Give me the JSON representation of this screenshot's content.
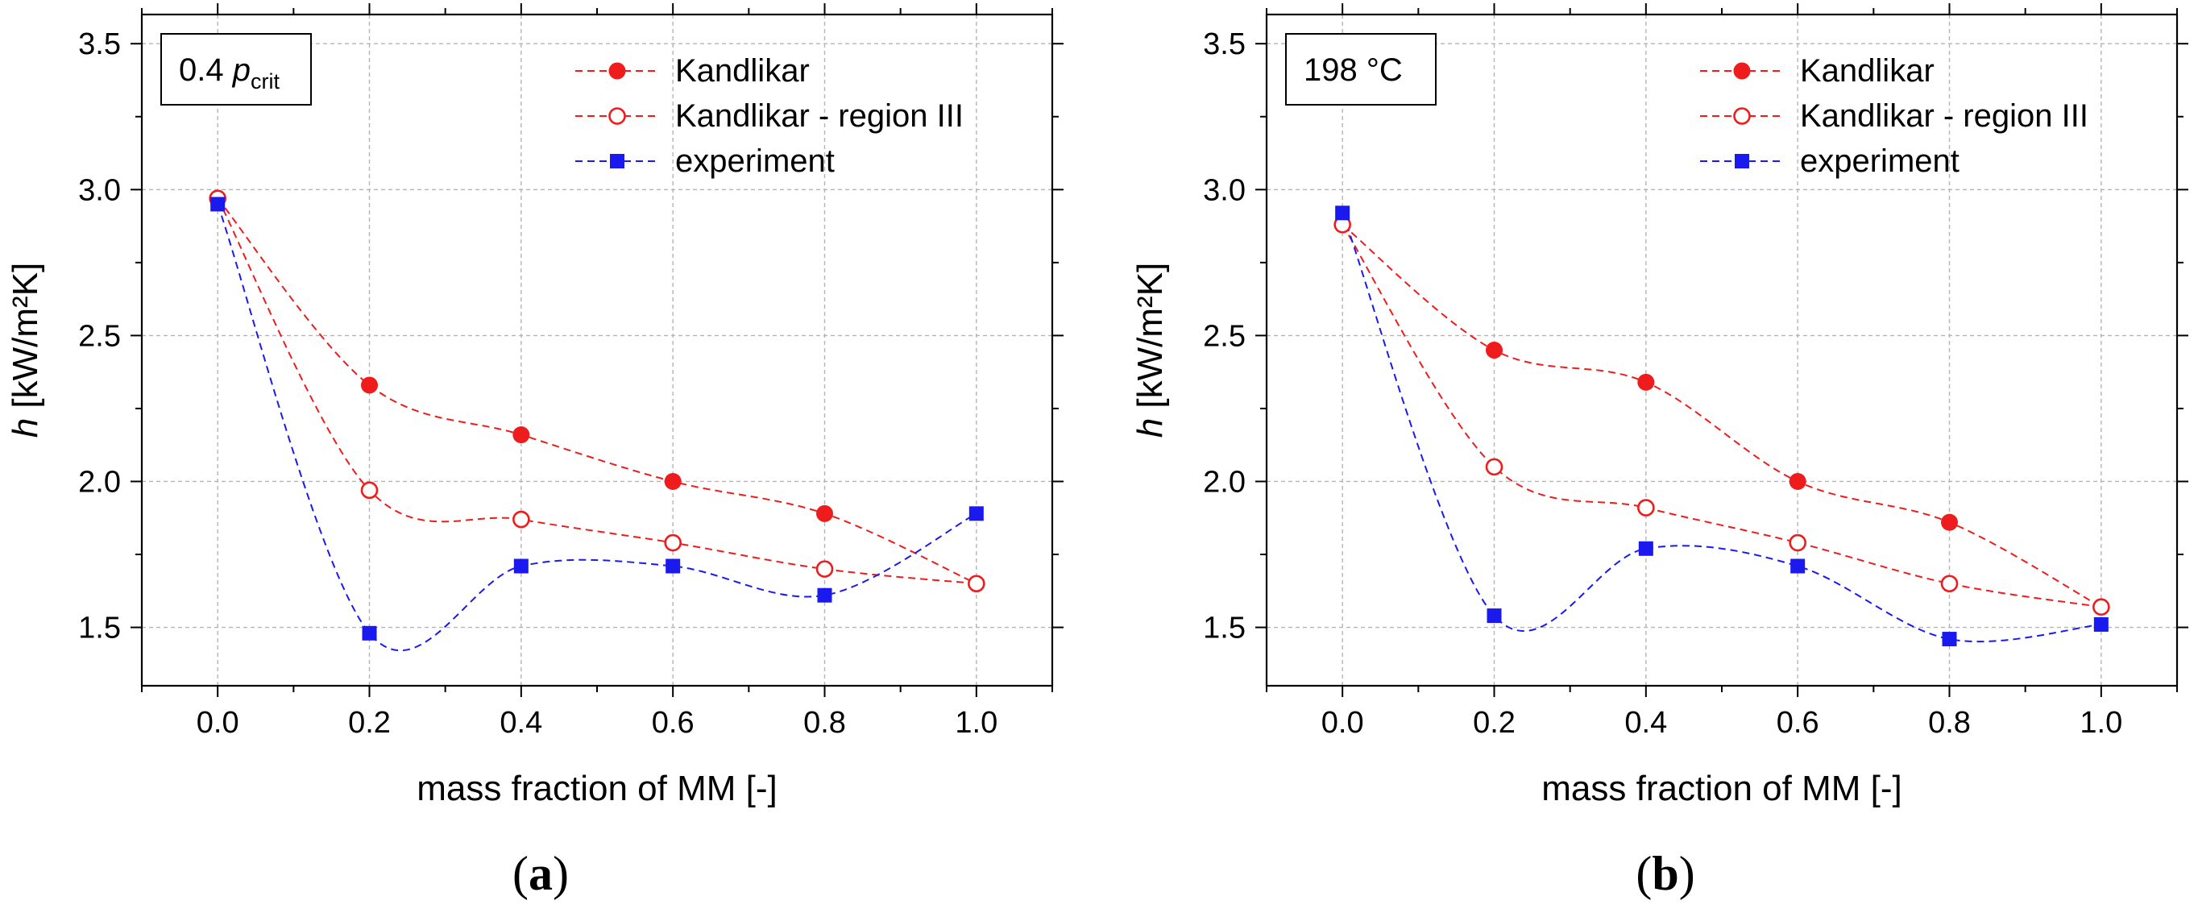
{
  "chart_data": [
    {
      "type": "line",
      "panel_label": "a",
      "annotation": {
        "text": "0.4 ",
        "italic": "p",
        "subscript": "crit"
      },
      "xlabel": "mass fraction of MM [-]",
      "ylabel": {
        "italic": "h",
        "rest": " [kW/m²K]"
      },
      "xlim": [
        -0.1,
        1.1
      ],
      "ylim": [
        1.3,
        3.6
      ],
      "xticks": [
        0.0,
        0.2,
        0.4,
        0.6,
        0.8,
        1.0
      ],
      "xtick_labels": [
        "0.0",
        "0.2",
        "0.4",
        "0.6",
        "0.8",
        "1.0"
      ],
      "yticks": [
        1.5,
        2.0,
        2.5,
        3.0,
        3.5
      ],
      "ytick_labels": [
        "1.5",
        "2.0",
        "2.5",
        "3.0",
        "3.5"
      ],
      "grid": true,
      "legend_position": "top-right",
      "x": [
        0.0,
        0.2,
        0.4,
        0.6,
        0.8,
        1.0
      ],
      "series": [
        {
          "name": "Kandlikar",
          "color": "#ee1c1c",
          "marker": "filled-circle",
          "values": [
            2.97,
            2.33,
            2.16,
            2.0,
            1.89,
            1.65
          ]
        },
        {
          "name": "Kandlikar - region III",
          "color": "#ee1c1c",
          "marker": "open-circle",
          "values": [
            2.97,
            1.97,
            1.87,
            1.79,
            1.7,
            1.65
          ]
        },
        {
          "name": "experiment",
          "color": "#1a1aee",
          "marker": "filled-square",
          "values": [
            2.95,
            1.48,
            1.71,
            1.71,
            1.61,
            1.89
          ]
        }
      ]
    },
    {
      "type": "line",
      "panel_label": "b",
      "annotation": {
        "text": "198 °C"
      },
      "xlabel": "mass fraction of MM [-]",
      "ylabel": {
        "italic": "h",
        "rest": " [kW/m²K]"
      },
      "xlim": [
        -0.1,
        1.1
      ],
      "ylim": [
        1.3,
        3.6
      ],
      "xticks": [
        0.0,
        0.2,
        0.4,
        0.6,
        0.8,
        1.0
      ],
      "xtick_labels": [
        "0.0",
        "0.2",
        "0.4",
        "0.6",
        "0.8",
        "1.0"
      ],
      "yticks": [
        1.5,
        2.0,
        2.5,
        3.0,
        3.5
      ],
      "ytick_labels": [
        "1.5",
        "2.0",
        "2.5",
        "3.0",
        "3.5"
      ],
      "grid": true,
      "legend_position": "top-right",
      "x": [
        0.0,
        0.2,
        0.4,
        0.6,
        0.8,
        1.0
      ],
      "series": [
        {
          "name": "Kandlikar",
          "color": "#ee1c1c",
          "marker": "filled-circle",
          "values": [
            2.88,
            2.45,
            2.34,
            2.0,
            1.86,
            1.57
          ]
        },
        {
          "name": "Kandlikar - region III",
          "color": "#ee1c1c",
          "marker": "open-circle",
          "values": [
            2.88,
            2.05,
            1.91,
            1.79,
            1.65,
            1.57
          ]
        },
        {
          "name": "experiment",
          "color": "#1a1aee",
          "marker": "filled-square",
          "values": [
            2.92,
            1.54,
            1.77,
            1.71,
            1.46,
            1.51
          ]
        }
      ]
    }
  ]
}
